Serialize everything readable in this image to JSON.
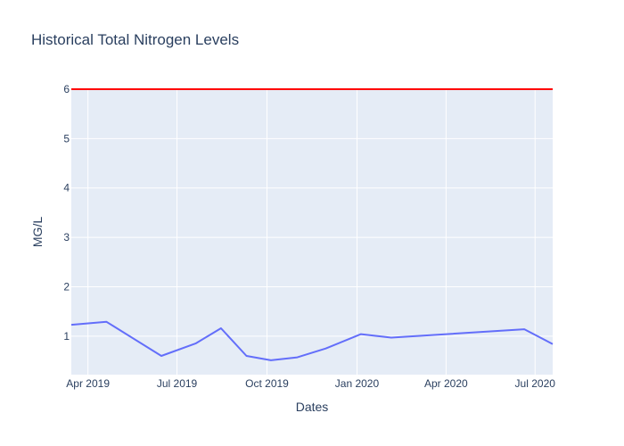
{
  "chart_data": {
    "type": "line",
    "title": "Historical Total Nitrogen Levels",
    "xlabel": "Dates",
    "ylabel": "MG/L",
    "xlim": [
      "2019-03-15",
      "2020-07-19"
    ],
    "ylim": [
      0.22,
      6.0
    ],
    "x_ticks": [
      {
        "date": "2019-04-01",
        "label": "Apr 2019"
      },
      {
        "date": "2019-07-01",
        "label": "Jul 2019"
      },
      {
        "date": "2019-10-01",
        "label": "Oct 2019"
      },
      {
        "date": "2020-01-01",
        "label": "Jan 2020"
      },
      {
        "date": "2020-04-01",
        "label": "Apr 2020"
      },
      {
        "date": "2020-07-01",
        "label": "Jul 2020"
      }
    ],
    "y_ticks": [
      1,
      2,
      3,
      4,
      5,
      6
    ],
    "grid": true,
    "plot_background": "#e5ecf6",
    "gridline_color": "#ffffff",
    "series": [
      {
        "color": "#636efa",
        "x": [
          "2019-03-15",
          "2019-04-20",
          "2019-06-15",
          "2019-07-20",
          "2019-08-15",
          "2019-09-10",
          "2019-10-05",
          "2019-11-01",
          "2019-11-30",
          "2020-01-05",
          "2020-02-05",
          "2020-06-20",
          "2020-07-19"
        ],
        "y": [
          1.23,
          1.29,
          0.6,
          0.85,
          1.16,
          0.6,
          0.51,
          0.57,
          0.75,
          1.04,
          0.97,
          1.14,
          0.84
        ]
      }
    ],
    "threshold": {
      "value": 6,
      "color": "#ff0000"
    }
  }
}
